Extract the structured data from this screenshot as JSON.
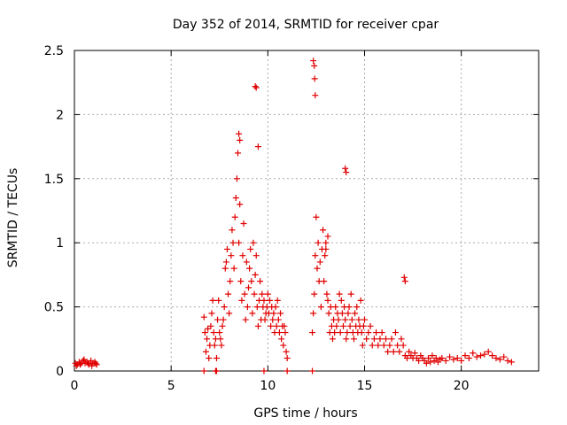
{
  "chart_data": {
    "type": "scatter",
    "title": "Day 352 of 2014, SRMTID for receiver cpar",
    "xlabel": "GPS time / hours",
    "ylabel": "SRMTID / TECUs",
    "xlim": [
      0,
      24
    ],
    "ylim": [
      0,
      2.5
    ],
    "xticks": [
      0,
      5,
      10,
      15,
      20
    ],
    "xtick_labels": [
      "0",
      "5",
      "10",
      "15",
      "20"
    ],
    "yticks": [
      0,
      0.5,
      1,
      1.5,
      2,
      2.5
    ],
    "ytick_labels": [
      "0",
      "0.5",
      "1",
      "1.5",
      "2",
      "2.5"
    ],
    "grid": true,
    "marker": "+",
    "color": "#e00000",
    "series": [
      {
        "name": "SRMTID",
        "x": [
          0.05,
          0.15,
          0.25,
          0.35,
          0.45,
          0.55,
          0.65,
          0.75,
          0.85,
          0.95,
          1.05,
          1.15,
          0.1,
          0.3,
          0.5,
          0.7,
          0.9,
          1.1,
          6.7,
          6.75,
          6.8,
          6.85,
          6.9,
          6.95,
          7.0,
          7.05,
          7.1,
          7.15,
          7.2,
          7.25,
          7.3,
          7.35,
          7.4,
          7.45,
          7.5,
          7.55,
          7.6,
          7.65,
          7.7,
          7.75,
          7.8,
          7.85,
          7.9,
          7.95,
          8.0,
          8.05,
          8.1,
          8.15,
          8.2,
          8.25,
          8.3,
          8.35,
          8.4,
          8.45,
          8.5,
          8.55,
          8.6,
          8.65,
          8.7,
          8.75,
          8.8,
          8.85,
          8.9,
          8.95,
          9.0,
          9.05,
          9.1,
          9.15,
          9.2,
          9.25,
          9.3,
          9.35,
          9.4,
          9.45,
          9.5,
          9.55,
          9.6,
          9.65,
          9.7,
          9.75,
          9.8,
          9.85,
          9.9,
          9.95,
          10.0,
          10.05,
          10.1,
          10.15,
          10.2,
          10.25,
          10.3,
          10.35,
          10.4,
          10.45,
          10.5,
          10.55,
          10.6,
          10.65,
          10.7,
          10.75,
          10.8,
          10.85,
          10.9,
          10.95,
          11.0,
          12.3,
          12.35,
          12.4,
          12.45,
          12.5,
          12.55,
          12.6,
          12.65,
          12.7,
          12.75,
          12.8,
          12.85,
          12.9,
          12.95,
          13.0,
          13.05,
          13.1,
          13.15,
          13.2,
          13.25,
          13.3,
          13.35,
          13.4,
          13.45,
          13.5,
          13.55,
          13.6,
          13.65,
          13.7,
          13.75,
          13.8,
          13.85,
          13.9,
          13.95,
          14.0,
          14.05,
          14.1,
          14.15,
          14.2,
          14.25,
          14.3,
          14.35,
          14.4,
          14.45,
          14.5,
          14.55,
          14.6,
          14.65,
          14.7,
          14.75,
          14.8,
          14.85,
          14.9,
          14.95,
          15.0,
          15.1,
          15.2,
          15.3,
          15.4,
          15.5,
          15.6,
          15.7,
          15.8,
          15.9,
          16.0,
          16.1,
          16.2,
          16.3,
          16.4,
          16.5,
          16.6,
          16.7,
          16.8,
          16.9,
          17.0,
          17.1,
          17.2,
          17.3,
          17.4,
          17.5,
          17.6,
          17.7,
          17.8,
          17.9,
          18.0,
          18.1,
          18.2,
          18.3,
          18.4,
          18.5,
          18.6,
          18.7,
          18.8,
          18.9,
          19.0,
          19.2,
          19.4,
          19.6,
          19.8,
          20.0,
          20.2,
          20.4,
          20.6,
          20.8,
          21.0,
          21.2,
          21.4,
          21.6,
          21.8,
          22.0,
          22.2,
          22.4,
          22.6,
          8.5,
          8.55,
          9.35,
          9.4,
          9.5,
          12.35,
          12.4,
          12.42,
          12.45,
          14.0,
          14.05,
          13.0,
          13.1,
          17.05,
          17.1,
          6.7,
          7.3,
          7.35,
          9.8,
          11.0,
          12.3
        ],
        "y": [
          0.06,
          0.05,
          0.07,
          0.06,
          0.08,
          0.06,
          0.07,
          0.05,
          0.08,
          0.06,
          0.07,
          0.05,
          0.04,
          0.05,
          0.09,
          0.06,
          0.04,
          0.06,
          0.42,
          0.3,
          0.15,
          0.25,
          0.33,
          0.1,
          0.2,
          0.35,
          0.45,
          0.55,
          0.3,
          0.2,
          0.25,
          0.1,
          0.4,
          0.55,
          0.3,
          0.25,
          0.2,
          0.35,
          0.4,
          0.5,
          0.8,
          0.85,
          0.95,
          0.6,
          0.45,
          0.7,
          0.9,
          1.1,
          1.0,
          0.8,
          1.2,
          1.35,
          1.5,
          1.7,
          1.0,
          1.3,
          0.7,
          0.55,
          0.9,
          1.15,
          0.6,
          0.4,
          0.85,
          0.5,
          0.65,
          0.8,
          0.95,
          0.7,
          0.45,
          1.0,
          0.6,
          0.75,
          0.9,
          0.5,
          0.35,
          0.55,
          0.7,
          0.4,
          0.6,
          0.5,
          0.55,
          0.4,
          0.45,
          0.5,
          0.6,
          0.45,
          0.55,
          0.35,
          0.5,
          0.4,
          0.45,
          0.3,
          0.5,
          0.35,
          0.55,
          0.4,
          0.3,
          0.45,
          0.25,
          0.35,
          0.2,
          0.35,
          0.3,
          0.15,
          0.1,
          0.3,
          0.45,
          0.6,
          0.9,
          1.2,
          0.8,
          1.0,
          0.7,
          0.85,
          0.5,
          0.95,
          1.1,
          0.7,
          0.9,
          1.0,
          0.6,
          0.55,
          0.45,
          0.3,
          0.5,
          0.35,
          0.25,
          0.4,
          0.3,
          0.5,
          0.35,
          0.45,
          0.4,
          0.6,
          0.3,
          0.55,
          0.45,
          0.35,
          0.5,
          0.4,
          0.25,
          0.3,
          0.45,
          0.5,
          0.35,
          0.6,
          0.4,
          0.3,
          0.25,
          0.45,
          0.35,
          0.5,
          0.3,
          0.4,
          0.35,
          0.55,
          0.3,
          0.2,
          0.35,
          0.4,
          0.25,
          0.3,
          0.35,
          0.2,
          0.25,
          0.3,
          0.2,
          0.25,
          0.3,
          0.2,
          0.25,
          0.15,
          0.2,
          0.25,
          0.15,
          0.3,
          0.2,
          0.15,
          0.25,
          0.2,
          0.12,
          0.1,
          0.15,
          0.12,
          0.1,
          0.14,
          0.1,
          0.08,
          0.12,
          0.1,
          0.08,
          0.06,
          0.1,
          0.07,
          0.12,
          0.08,
          0.1,
          0.07,
          0.09,
          0.1,
          0.08,
          0.11,
          0.09,
          0.1,
          0.08,
          0.12,
          0.1,
          0.14,
          0.11,
          0.12,
          0.13,
          0.15,
          0.12,
          0.1,
          0.09,
          0.11,
          0.08,
          0.07,
          1.85,
          1.8,
          2.22,
          2.21,
          1.75,
          2.42,
          2.38,
          2.28,
          2.15,
          1.58,
          1.55,
          0.95,
          1.05,
          0.73,
          0.7,
          0.0,
          0.0,
          0.0,
          0.0,
          0.0,
          0.0
        ]
      }
    ]
  }
}
